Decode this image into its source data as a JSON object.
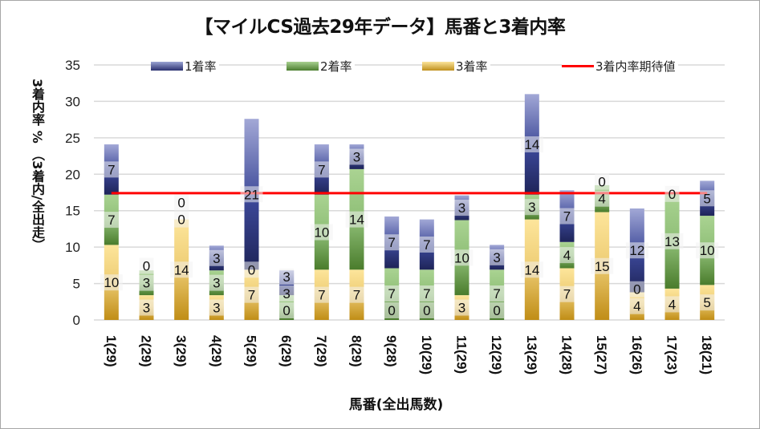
{
  "chart_data": {
    "type": "bar",
    "stacked": true,
    "title": "【マイルCS過去29年データ】馬番と3着内率",
    "xlabel": "馬番(全出馬数)",
    "ylabel": "3着内率 % （3着内/全出走）",
    "ylim": [
      0,
      35
    ],
    "yticks": [
      0,
      5,
      10,
      15,
      20,
      25,
      30,
      35
    ],
    "grid": true,
    "legend_position": "top",
    "categories": [
      "1(29)",
      "2(29)",
      "3(29)",
      "4(29)",
      "5(29)",
      "6(29)",
      "7(29)",
      "8(29)",
      "9(28)",
      "10(29)",
      "11(29)",
      "12(29)",
      "13(29)",
      "14(28)",
      "15(27)",
      "16(26)",
      "17(23)",
      "18(21)"
    ],
    "series": [
      {
        "name": "3着率",
        "color": "#e0b040",
        "values": [
          10.3,
          3.4,
          13.8,
          3.4,
          6.9,
          0,
          6.9,
          6.9,
          0,
          0,
          3.4,
          0,
          13.8,
          7.1,
          14.8,
          3.8,
          4.3,
          4.8
        ],
        "labels": [
          "10",
          "3",
          "14",
          "3",
          "7",
          "0",
          "7",
          "7",
          "0",
          "0",
          "3",
          "0",
          "14",
          "7",
          "15",
          "4",
          "4",
          "5"
        ]
      },
      {
        "name": "2着率",
        "color": "#6aa050",
        "values": [
          6.9,
          3.4,
          0,
          3.4,
          0,
          3.4,
          10.3,
          13.8,
          7.1,
          6.9,
          10.3,
          6.9,
          3.4,
          3.6,
          3.7,
          0,
          13.0,
          9.5
        ],
        "labels": [
          "7",
          "3",
          "0",
          "3",
          "0",
          "3",
          "10",
          "14",
          "7",
          "7",
          "10",
          "7",
          "3",
          "4",
          "4",
          "0",
          "13",
          "10"
        ]
      },
      {
        "name": "1着率",
        "color": "#4a5aa0",
        "values": [
          6.9,
          0,
          0,
          3.4,
          20.7,
          3.4,
          6.9,
          3.4,
          7.1,
          6.9,
          3.4,
          3.4,
          13.8,
          7.1,
          0,
          11.5,
          0,
          4.8
        ],
        "labels": [
          "7",
          "0",
          "0",
          "3",
          "21",
          "3",
          "7",
          "3",
          "7",
          "7",
          "3",
          "3",
          "14",
          "7",
          "0",
          "12",
          "0",
          "5"
        ]
      }
    ],
    "reference_line": {
      "name": "3着内率期待値",
      "value": 17.4,
      "color": "#ff0000"
    }
  },
  "legend": {
    "items": [
      {
        "label": "1着率",
        "color": "#4a5aa0"
      },
      {
        "label": "2着率",
        "color": "#6aa050"
      },
      {
        "label": "3着率",
        "color": "#e0b040"
      },
      {
        "label": "3着内率期待値",
        "color": "#ff0000"
      }
    ]
  }
}
